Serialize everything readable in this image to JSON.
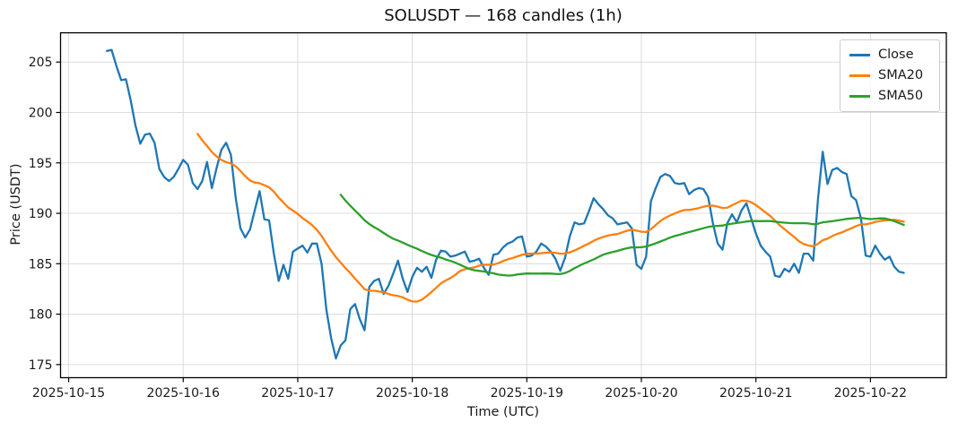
{
  "figure": {
    "title": "SOLUSDT — 168 candles (1h)",
    "xlabel": "Time (UTC)",
    "ylabel": "Price (USDT)"
  },
  "legend": {
    "position": "upper right",
    "items": [
      {
        "label": "Close",
        "color": "#1f77b4"
      },
      {
        "label": "SMA20",
        "color": "#ff7f0e"
      },
      {
        "label": "SMA50",
        "color": "#2ca02c"
      }
    ]
  },
  "chart_data": {
    "type": "line",
    "title": "SOLUSDT — 168 candles (1h)",
    "xlabel": "Time (UTC)",
    "ylabel": "Price (USDT)",
    "symbol": "SOLUSDT",
    "interval": "1h",
    "n_candles": 168,
    "x_start_utc": "2025-10-15 08:00",
    "x_step_hours": 1,
    "grid": true,
    "legend_position": "upper right",
    "x_ticks": [
      {
        "label": "2025-10-15",
        "hour_offset": -8
      },
      {
        "label": "2025-10-16",
        "hour_offset": 16
      },
      {
        "label": "2025-10-17",
        "hour_offset": 40
      },
      {
        "label": "2025-10-18",
        "hour_offset": 64
      },
      {
        "label": "2025-10-19",
        "hour_offset": 88
      },
      {
        "label": "2025-10-20",
        "hour_offset": 112
      },
      {
        "label": "2025-10-21",
        "hour_offset": 136
      },
      {
        "label": "2025-10-22",
        "hour_offset": 160
      }
    ],
    "y_ticks": [
      175,
      180,
      185,
      190,
      195,
      200,
      205
    ],
    "xlim_hours": [
      -9.7,
      175.9
    ],
    "ylim": [
      173.7,
      207.9
    ],
    "grid_color": "#dcdcdc",
    "spine_color": "#000000",
    "series": [
      {
        "name": "Close",
        "color": "#1f77b4",
        "values": [
          206.1,
          206.2,
          204.6,
          203.2,
          203.3,
          201.2,
          198.7,
          196.9,
          197.8,
          197.9,
          197.0,
          194.4,
          193.6,
          193.2,
          193.6,
          194.4,
          195.3,
          194.8,
          193.0,
          192.4,
          193.2,
          195.1,
          192.5,
          194.5,
          196.3,
          197.0,
          195.8,
          191.5,
          188.5,
          187.6,
          188.4,
          190.3,
          192.2,
          189.4,
          189.3,
          186.0,
          183.3,
          184.9,
          183.5,
          186.2,
          186.5,
          186.8,
          186.1,
          187.0,
          187.0,
          185.0,
          180.4,
          177.6,
          175.6,
          176.9,
          177.4,
          180.5,
          181.0,
          179.5,
          178.4,
          182.7,
          183.3,
          183.5,
          182.0,
          182.8,
          184.0,
          185.3,
          183.5,
          182.2,
          183.7,
          184.6,
          184.2,
          184.7,
          183.6,
          185.4,
          186.3,
          186.2,
          185.7,
          185.8,
          186.0,
          186.2,
          185.2,
          185.3,
          185.5,
          184.6,
          183.9,
          185.9,
          186.0,
          186.6,
          187.0,
          187.2,
          187.6,
          187.7,
          185.7,
          185.8,
          186.2,
          187.0,
          186.7,
          186.2,
          185.5,
          184.3,
          185.6,
          187.7,
          189.1,
          188.9,
          189.0,
          190.2,
          191.5,
          190.9,
          190.4,
          189.8,
          189.5,
          188.9,
          189.0,
          189.1,
          188.5,
          184.9,
          184.5,
          185.7,
          191.2,
          192.5,
          193.6,
          193.9,
          193.7,
          193.0,
          192.9,
          193.0,
          191.9,
          192.3,
          192.5,
          192.4,
          191.6,
          189.0,
          187.0,
          186.4,
          189.0,
          189.9,
          189.1,
          190.3,
          191.0,
          189.5,
          188.0,
          186.8,
          186.2,
          185.7,
          183.8,
          183.7,
          184.5,
          184.2,
          185.0,
          184.1,
          186.0,
          186.0,
          185.3,
          191.4,
          196.1,
          192.9,
          194.3,
          194.5,
          194.1,
          193.9,
          191.7,
          191.3,
          189.5,
          185.8,
          185.7,
          186.8,
          186.0,
          185.4,
          185.7,
          184.7,
          184.2,
          184.1
        ]
      },
      {
        "name": "SMA20",
        "color": "#ff7f0e",
        "derived_from": "Close",
        "sma_period": 20
      },
      {
        "name": "SMA50",
        "color": "#2ca02c",
        "derived_from": "Close",
        "sma_period": 50
      }
    ]
  }
}
